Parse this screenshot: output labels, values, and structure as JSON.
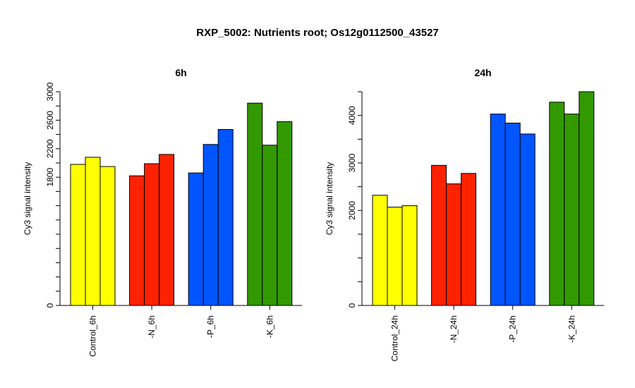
{
  "title": "RXP_5002: Nutrients root; Os12g0112500_43527",
  "chart_data": [
    {
      "type": "bar",
      "title": "6h",
      "ylabel": "Cy3 signal intensity",
      "ylim": [
        0,
        3000
      ],
      "yticks": [
        0,
        1800,
        2200,
        2600,
        3000
      ],
      "categories": [
        "Control_6h",
        "-N_6h",
        "-P_6h",
        "-K_6h"
      ],
      "colors": [
        "#ffff00",
        "#ff2200",
        "#0055ff",
        "#339900"
      ],
      "values": [
        [
          1980,
          2080,
          1950
        ],
        [
          1820,
          1990,
          2120
        ],
        [
          1860,
          2260,
          2470
        ],
        [
          2840,
          2250,
          2580
        ]
      ]
    },
    {
      "type": "bar",
      "title": "24h",
      "ylabel": "Cy3 signal intensity",
      "ylim": [
        0,
        4500
      ],
      "yticks": [
        0,
        2000,
        3000,
        4000
      ],
      "categories": [
        "Control_24h",
        "-N_24h",
        "-P_24h",
        "-K_24h"
      ],
      "colors": [
        "#ffff00",
        "#ff2200",
        "#0055ff",
        "#339900"
      ],
      "values": [
        [
          2320,
          2070,
          2100
        ],
        [
          2950,
          2560,
          2780
        ],
        [
          4030,
          3840,
          3610
        ],
        [
          4280,
          4030,
          4500
        ]
      ]
    }
  ]
}
